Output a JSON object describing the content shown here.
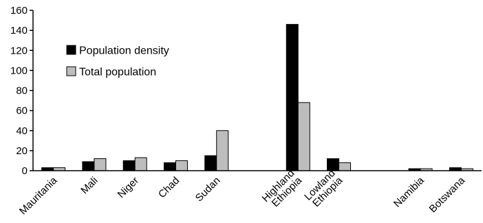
{
  "chart_data": {
    "type": "bar",
    "categories": [
      "Mauritania",
      "Mali",
      "Niger",
      "Chad",
      "Sudan",
      "",
      "Highland Ethiopia",
      "Lowland Ethiopia",
      "",
      "Namibia",
      "Botswana"
    ],
    "category_lines": [
      [
        "Mauritania"
      ],
      [
        "Mali"
      ],
      [
        "Niger"
      ],
      [
        "Chad"
      ],
      [
        "Sudan"
      ],
      [],
      [
        "Highland",
        "Ethiopia"
      ],
      [
        "Lowland",
        "Ethiopia"
      ],
      [],
      [
        "Namibia"
      ],
      [
        "Botswana"
      ]
    ],
    "series": [
      {
        "name": "Population density",
        "color": "#000000",
        "values": [
          3,
          9,
          10,
          8,
          15,
          null,
          146,
          12,
          null,
          2,
          3
        ]
      },
      {
        "name": "Total population",
        "color": "#bdbdbd",
        "values": [
          3,
          12,
          13,
          10,
          40,
          null,
          68,
          8,
          null,
          2,
          2
        ]
      }
    ],
    "ylim": [
      0,
      160
    ],
    "yticks": [
      0,
      20,
      40,
      60,
      80,
      100,
      120,
      140,
      160
    ],
    "title": "",
    "xlabel": "",
    "ylabel": "",
    "legend_position": "top-left",
    "grid": false
  }
}
